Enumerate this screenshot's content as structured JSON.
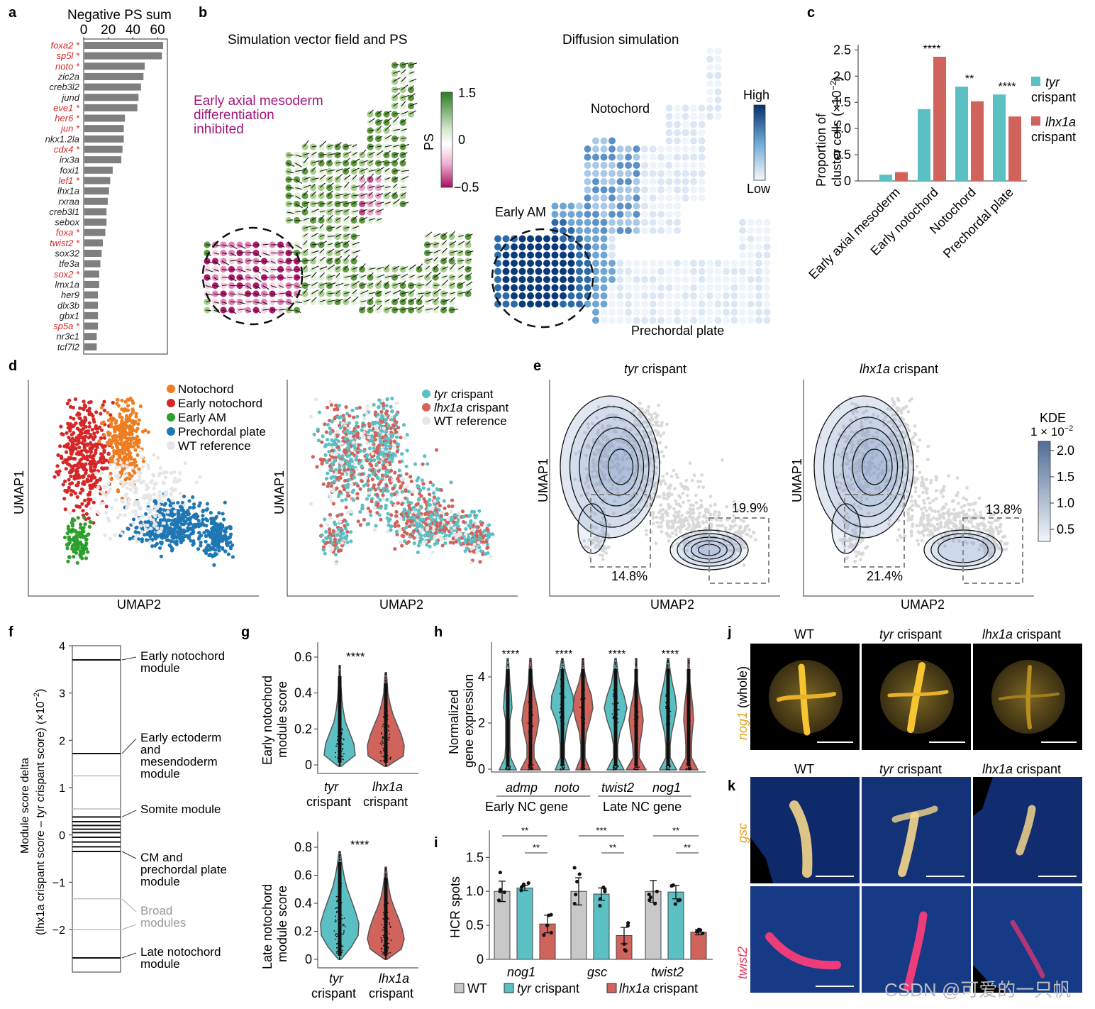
{
  "panel_labels": [
    "a",
    "b",
    "c",
    "d",
    "e",
    "f",
    "g",
    "h",
    "i",
    "j",
    "k"
  ],
  "panel_a": {
    "title": "Negative PS sum",
    "ticks": [
      "0",
      "20",
      "40",
      "60"
    ],
    "genes": [
      "foxa2 *",
      "sp5l *",
      "noto *",
      "zic2a",
      "creb3l2",
      "jund",
      "eve1 *",
      "her6 *",
      "jun *",
      "nkx1.2la",
      "cdx4 *",
      "irx3a",
      "foxi1",
      "lef1 *",
      "lhx1a",
      "rxraa",
      "creb3l1",
      "sebox",
      "foxa *",
      "twist2 *",
      "sox32",
      "tfe3a",
      "sox2 *",
      "lmx1a",
      "her9",
      "dlx3b",
      "gbx1",
      "sp5a *",
      "nr3c1",
      "tcf7l2"
    ]
  },
  "panel_b": {
    "title_left": "Simulation vector field and PS",
    "title_right": "Diffusion simulation",
    "annotation_lines": [
      "Early axial mesoderm",
      "differentiation",
      "inhibited"
    ],
    "ps_label": "PS",
    "ps_ticks": [
      "1.5",
      "0",
      "−0.5"
    ],
    "diff_high": "High",
    "diff_low": "Low",
    "label_notochord": "Notochord",
    "label_early_am": "Early AM",
    "label_prechordal": "Prechordal plate"
  },
  "panel_c": {
    "ylabel_lines": [
      "Proportion of",
      "cluster cells (×10",
      "−2",
      ")"
    ],
    "yticks": [
      "0",
      "0.5",
      "1.0",
      "1.5",
      "2.0",
      "2.5"
    ],
    "legend_tyr_italic": "tyr",
    "legend_lhx_italic": "lhx1a",
    "legend_suffix": "crispant",
    "significance": [
      "",
      "****",
      "**",
      "****"
    ]
  },
  "panel_d": {
    "legend_left": [
      "Notochord",
      "Early notochord",
      "Early AM",
      "Prechordal plate",
      "WT reference"
    ],
    "legend_right_italic": [
      "tyr",
      "lhx1a"
    ],
    "legend_right_suffix": "crispant",
    "legend_right_ref": "WT reference",
    "xlabel": "UMAP2",
    "ylabel": "UMAP1"
  },
  "panel_e": {
    "title_left_italic": "tyr",
    "title_right_italic": "lhx1a",
    "title_suffix": "crispant",
    "pct_left": [
      "19.9%",
      "14.8%"
    ],
    "pct_right": [
      "13.8%",
      "21.4%"
    ],
    "kde_title": "KDE",
    "kde_sub": "1 × 10",
    "kde_exp": "−2",
    "kde_ticks": [
      "2.0",
      "1.5",
      "1.0",
      "0.5"
    ],
    "xlabel": "UMAP2",
    "ylabel": "UMAP1"
  },
  "panel_f": {
    "ylabel_1": "Module score delta",
    "ylabel_2": "(lhx1a crispant score – tyr crispant score) (×10",
    "ylabel_exp": "−2",
    "ylabel_end": ")",
    "yticks": [
      "4",
      "3",
      "2",
      "1",
      "0",
      "−1",
      "−2"
    ],
    "modules": [
      [
        "Early notochord",
        "module"
      ],
      [
        "Early ectoderm",
        "and",
        "mesendoderm",
        "module"
      ],
      [
        "Somite module"
      ],
      [
        "CM and",
        "prechordal plate",
        "module"
      ],
      [
        "Broad",
        "modules"
      ],
      [
        "Late notochord",
        "module"
      ]
    ]
  },
  "panel_g": {
    "top_ylabel": [
      "Early notochord",
      "module score"
    ],
    "top_yticks": [
      "0",
      "0.2",
      "0.4",
      "0.6"
    ],
    "bottom_ylabel": [
      "Late notochord",
      "module score"
    ],
    "bottom_yticks": [
      "0",
      "0.2",
      "0.4",
      "0.6",
      "0.8"
    ],
    "group_italic": [
      "tyr",
      "lhx1a"
    ],
    "group_suffix": "crispant",
    "significance": "****"
  },
  "panel_h": {
    "ylabel": [
      "Normalized",
      "gene expression"
    ],
    "yticks": [
      "0",
      "2",
      "4"
    ],
    "genes": [
      "admp",
      "noto",
      "twist2",
      "nog1"
    ],
    "group_labels": [
      "Early NC gene",
      "Late NC gene"
    ],
    "significance": "****"
  },
  "panel_i": {
    "ylabel": "HCR spots",
    "yticks": [
      "0",
      "0.5",
      "1.0",
      "1.5"
    ],
    "genes": [
      "nog1",
      "gsc",
      "twist2"
    ],
    "sig_outer": [
      "**",
      "***",
      "**"
    ],
    "sig_inner": [
      "**",
      "**",
      "**"
    ],
    "legend_wt": "WT",
    "legend_tyr_italic": "tyr",
    "legend_lhx_italic": "lhx1a",
    "legend_suffix": "crispant"
  },
  "panel_j": {
    "col_wt": "WT",
    "col_tyr_italic": "tyr",
    "col_lhx_italic": "lhx1a",
    "col_suffix": "crispant",
    "row_label_italic": "nog1",
    "row_label_rest": "(whole)"
  },
  "panel_k": {
    "col_wt": "WT",
    "col_tyr_italic": "tyr",
    "col_lhx_italic": "lhx1a",
    "col_suffix": "crispant",
    "row1": "gsc",
    "row2": "twist2"
  },
  "watermark": "CSDN @可爱的一只帆",
  "colors": {
    "tyr": "#5bc0c4",
    "lhx1a": "#d1635d",
    "wt": "#c8c8c8",
    "notochord": "#ef7d22",
    "early_notochord": "#d62728",
    "early_am": "#2ca02c",
    "prechordal": "#1f77b4",
    "reference": "#e6e6e6",
    "ps_pos": "#3a8b2e",
    "ps_neg": "#b0186e",
    "diff_high": "#08306b",
    "hit_gene": "#d62728"
  },
  "chart_data": [
    {
      "type": "bar",
      "panel": "a",
      "title": "Negative PS sum",
      "orientation": "horizontal",
      "categories": [
        "foxa2",
        "sp5l",
        "noto",
        "zic2a",
        "creb3l2",
        "jund",
        "eve1",
        "her6",
        "jun",
        "nkx1.2la",
        "cdx4",
        "irx3a",
        "foxi1",
        "lef1",
        "lhx1a",
        "rxraa",
        "creb3l1",
        "sebox",
        "foxa",
        "twist2",
        "sox32",
        "tfe3a",
        "sox2",
        "lmx1a",
        "her9",
        "dlx3b",
        "gbx1",
        "sp5a",
        "nr3c1",
        "tcf7l2"
      ],
      "values": [
        64,
        63,
        49,
        48,
        46,
        44,
        43,
        33,
        32,
        32,
        31,
        30,
        23,
        21,
        20,
        19,
        18,
        18,
        17,
        15,
        14,
        13,
        12,
        12,
        11,
        11,
        11,
        11,
        10,
        10
      ],
      "xlim": [
        0,
        68
      ]
    },
    {
      "type": "bar",
      "panel": "c",
      "categories": [
        "Early axial mesoderm",
        "Early notochord",
        "Notochord",
        "Prechordal plate"
      ],
      "series": [
        {
          "name": "tyr crispant",
          "values": [
            0.12,
            1.37,
            1.8,
            1.65
          ]
        },
        {
          "name": "lhx1a crispant",
          "values": [
            0.17,
            2.37,
            1.52,
            1.23
          ]
        }
      ],
      "ylabel": "Proportion of cluster cells (×10−2)",
      "ylim": [
        0,
        2.6
      ]
    },
    {
      "type": "bar",
      "panel": "i",
      "categories": [
        "nog1",
        "gsc",
        "twist2"
      ],
      "series": [
        {
          "name": "WT",
          "values": [
            1.0,
            1.0,
            1.0
          ]
        },
        {
          "name": "tyr crispant",
          "values": [
            1.05,
            0.96,
            0.99
          ]
        },
        {
          "name": "lhx1a crispant",
          "values": [
            0.52,
            0.35,
            0.4
          ]
        }
      ],
      "errors": [
        [
          0.15,
          0.2,
          0.16
        ],
        [
          0.04,
          0.09,
          0.1
        ],
        [
          0.13,
          0.12,
          0.04
        ]
      ],
      "ylabel": "HCR spots",
      "ylim": [
        0,
        1.9
      ]
    },
    {
      "type": "line",
      "panel": "f",
      "ylabel": "Module score delta (lhx1a crispant score – tyr crispant score) (×10−2)",
      "ylim": [
        -2.9,
        4.0
      ],
      "module_lines": [
        3.7,
        1.72,
        1.25,
        0.55,
        0.38,
        0.28,
        0.2,
        0.12,
        0.05,
        -0.05,
        -0.15,
        -0.25,
        -0.35,
        -1.35,
        -2.0,
        -2.6
      ]
    }
  ]
}
